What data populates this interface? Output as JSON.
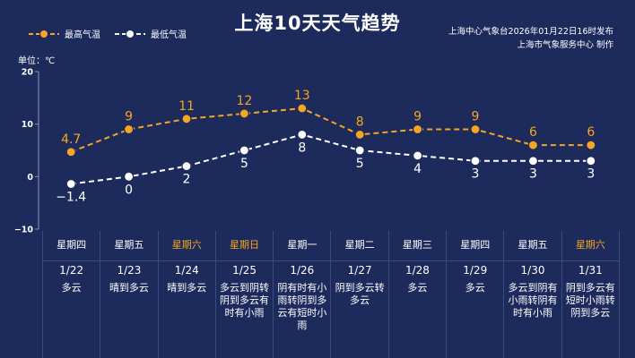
{
  "title": "上海10天天气趋势",
  "publisher": {
    "line1": "上海中心气象台2026年01月22日16时发布",
    "line2": "上海市气象服务中心 制作"
  },
  "legend": {
    "high_label": "最高气温",
    "low_label": "最低气温"
  },
  "unit_label": "单位：℃",
  "colors": {
    "background": "#1d2a5c",
    "high": "#f5a623",
    "low": "#ffffff",
    "weekend": "#f5a623"
  },
  "days": [
    {
      "weekday": "星期四",
      "date": "1/22",
      "weather": "多云",
      "weekend": false
    },
    {
      "weekday": "星期五",
      "date": "1/23",
      "weather": "晴到多云",
      "weekend": false
    },
    {
      "weekday": "星期六",
      "date": "1/24",
      "weather": "晴到多云",
      "weekend": true
    },
    {
      "weekday": "星期日",
      "date": "1/25",
      "weather": "多云到阴转阴到多云有时有小雨",
      "weekend": true
    },
    {
      "weekday": "星期一",
      "date": "1/26",
      "weather": "阴有时有小雨转阴到多云有短时小雨",
      "weekend": false
    },
    {
      "weekday": "星期二",
      "date": "1/27",
      "weather": "阴到多云转多云",
      "weekend": false
    },
    {
      "weekday": "星期三",
      "date": "1/28",
      "weather": "多云",
      "weekend": false
    },
    {
      "weekday": "星期四",
      "date": "1/29",
      "weather": "多云",
      "weekend": false
    },
    {
      "weekday": "星期五",
      "date": "1/30",
      "weather": "多云到阴有小雨转阴有时有小雨",
      "weekend": false
    },
    {
      "weekday": "星期六",
      "date": "1/31",
      "weather": "阴到多云有短时小雨转阴到多云",
      "weekend": true
    }
  ],
  "chart_data": {
    "type": "line",
    "categories": [
      "1/22",
      "1/23",
      "1/24",
      "1/25",
      "1/26",
      "1/27",
      "1/28",
      "1/29",
      "1/30",
      "1/31"
    ],
    "series": [
      {
        "name": "最高气温",
        "values": [
          4.7,
          9,
          11,
          12,
          13,
          8,
          9,
          9,
          6,
          6
        ],
        "labels": [
          "4.7",
          "9",
          "11",
          "12",
          "13",
          "8",
          "9",
          "9",
          "6",
          "6"
        ],
        "style": "dashed",
        "color": "#f5a623"
      },
      {
        "name": "最低气温",
        "values": [
          -1.4,
          0,
          2,
          5,
          8,
          5,
          4,
          3,
          3,
          3
        ],
        "labels": [
          "−1.4",
          "0",
          "2",
          "5",
          "8",
          "5",
          "4",
          "3",
          "3",
          "3"
        ],
        "style": "dashed",
        "color": "#ffffff"
      }
    ],
    "ylim": [
      -10,
      20
    ],
    "yticks": [
      "20",
      "10",
      "0",
      "−10"
    ],
    "ylabel": "单位：℃",
    "xlabel": "",
    "grid": false,
    "legend": "top-left"
  }
}
